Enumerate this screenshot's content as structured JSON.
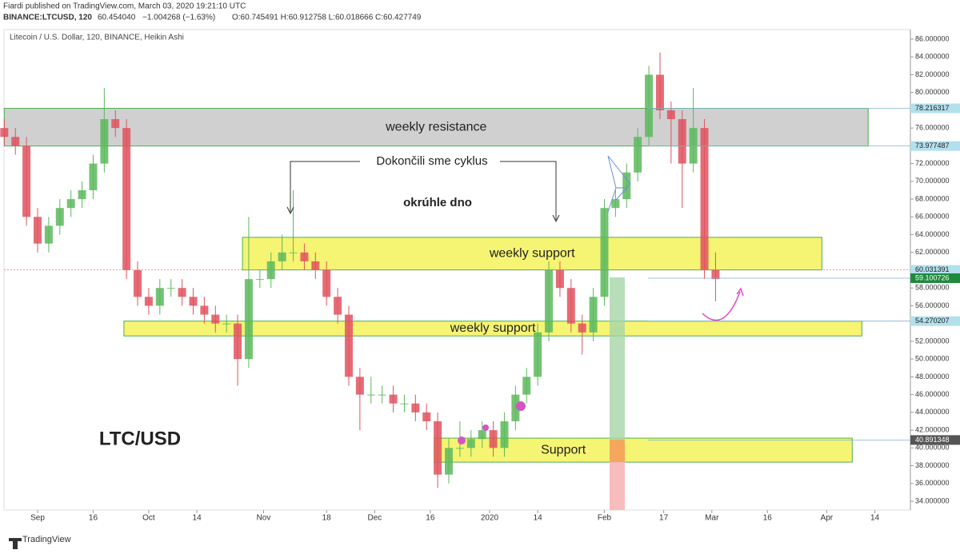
{
  "header": {
    "line1": "Fiardi published on TradingView.com, March 03, 2020 19:21:10 UTC",
    "symbol": "BINANCE:LTCUSD, 120",
    "last": "60.454040",
    "change": "−1.004268 (−1.63%)",
    "ohlc": "O:60.745491  H:60.912758  L:60.018666  C:60.427749"
  },
  "footer": {
    "brand": "TradingView"
  },
  "chart_data": {
    "type": "candlestick",
    "title": "Litecoin / U.S. Dollar, 120, BINANCE, Heikin Ashi",
    "x": [
      -9,
      -6,
      -3,
      0,
      3,
      6,
      9,
      12,
      15,
      18,
      21,
      24,
      27,
      30,
      33,
      36,
      39,
      42,
      45,
      48,
      51,
      54,
      57,
      60,
      63,
      66,
      69,
      72,
      75,
      78,
      81,
      84,
      87,
      90,
      93,
      96,
      99,
      102,
      105,
      108,
      111,
      114,
      117,
      120,
      123,
      126,
      129,
      132,
      135,
      138,
      141,
      144,
      147,
      150,
      153,
      156,
      159,
      162,
      165,
      168,
      171,
      174,
      177,
      180,
      183
    ],
    "open": [
      76,
      75,
      74,
      66,
      63,
      65,
      67,
      68,
      69,
      72,
      77,
      76,
      60,
      57,
      56,
      58,
      58,
      57,
      56,
      55,
      54,
      54,
      50,
      59,
      59,
      61,
      62,
      62,
      61,
      60,
      57,
      55,
      48,
      46,
      46,
      46,
      45,
      45,
      44,
      43,
      37,
      40,
      40,
      41,
      42,
      40,
      43,
      46,
      48,
      53,
      60,
      58,
      54,
      53,
      57,
      67,
      68,
      71,
      75,
      82,
      78,
      77,
      72,
      76,
      60
    ],
    "high": [
      77,
      76,
      75,
      67,
      66,
      68,
      69,
      70,
      73,
      80.5,
      78,
      77,
      61,
      58,
      59,
      59,
      59,
      58,
      57,
      56,
      55,
      55,
      66,
      60,
      62,
      64,
      69,
      63,
      62,
      61,
      58,
      56,
      49,
      48,
      47,
      47,
      46,
      46,
      45,
      44,
      41,
      43,
      42,
      43,
      43,
      44,
      47,
      49,
      54,
      61,
      61,
      59,
      55,
      58,
      68,
      69,
      72,
      76,
      83,
      84.5,
      79,
      78,
      80.5,
      77,
      62
    ],
    "low": [
      74,
      73,
      65,
      62,
      62,
      64,
      66,
      67,
      68,
      71,
      75,
      59,
      56,
      55,
      55,
      57,
      56,
      55,
      54,
      53,
      53,
      47,
      49,
      58,
      58,
      60,
      61,
      60,
      59,
      56,
      54,
      47,
      42,
      45,
      45,
      44,
      44,
      43,
      42,
      35.5,
      36,
      39,
      39,
      40,
      39,
      39,
      42,
      45,
      47,
      52,
      57,
      53,
      50.5,
      52,
      56,
      66,
      67,
      70,
      74,
      77,
      72,
      67,
      71,
      59,
      56.5
    ],
    "close": [
      75,
      74,
      66,
      63,
      65,
      67,
      68,
      69,
      72,
      77,
      76,
      60,
      57,
      56,
      58,
      58,
      57,
      56,
      55,
      54,
      54,
      50,
      59,
      59,
      61,
      62,
      62,
      61,
      60,
      57,
      55,
      48,
      46,
      46,
      46,
      45,
      45,
      44,
      43,
      37,
      40,
      40,
      41,
      42,
      40,
      43,
      46,
      48,
      53,
      60,
      58,
      54,
      53,
      57,
      67,
      68,
      71,
      75,
      82,
      78,
      77,
      72,
      76,
      60,
      59
    ],
    "up_color": "#5cb85c",
    "down_color": "#e0525e",
    "xlim": [
      -9.07,
      235.6
    ],
    "xticks": [
      {
        "value": 0,
        "label": "Sep"
      },
      {
        "value": 15,
        "label": "16"
      },
      {
        "value": 30,
        "label": "Oct"
      },
      {
        "value": 43,
        "label": "14"
      },
      {
        "value": 61,
        "label": "Nov"
      },
      {
        "value": 78,
        "label": "18"
      },
      {
        "value": 91,
        "label": "Dec"
      },
      {
        "value": 106,
        "label": "16"
      },
      {
        "value": 122,
        "label": "2020"
      },
      {
        "value": 135,
        "label": "14"
      },
      {
        "value": 153,
        "label": "Feb"
      },
      {
        "value": 169,
        "label": "17"
      },
      {
        "value": 182,
        "label": "Mar"
      },
      {
        "value": 197,
        "label": "16"
      },
      {
        "value": 213,
        "label": "Apr"
      },
      {
        "value": 226,
        "label": "14"
      }
    ],
    "ylim": [
      33.01,
      87.08
    ],
    "yticks": [
      {
        "value": 34,
        "label": "34.000000"
      },
      {
        "value": 36,
        "label": "36.000000"
      },
      {
        "value": 38,
        "label": "38.000000"
      },
      {
        "value": 40,
        "label": "40.000000"
      },
      {
        "value": 42,
        "label": "42.000000"
      },
      {
        "value": 44,
        "label": "44.000000"
      },
      {
        "value": 46,
        "label": "46.000000"
      },
      {
        "value": 48,
        "label": "48.000000"
      },
      {
        "value": 50,
        "label": "50.000000"
      },
      {
        "value": 52,
        "label": "52.000000"
      },
      {
        "value": 54,
        "label": "54.000000"
      },
      {
        "value": 56,
        "label": "56.000000"
      },
      {
        "value": 58,
        "label": "58.000000"
      },
      {
        "value": 60,
        "label": "60.000000"
      },
      {
        "value": 62,
        "label": "62.000000"
      },
      {
        "value": 64,
        "label": "64.000000"
      },
      {
        "value": 66,
        "label": "66.000000"
      },
      {
        "value": 68,
        "label": "68.000000"
      },
      {
        "value": 70,
        "label": "70.000000"
      },
      {
        "value": 72,
        "label": "72.000000"
      },
      {
        "value": 74,
        "label": "74.000000"
      },
      {
        "value": 76,
        "label": "76.000000"
      },
      {
        "value": 78,
        "label": "78.000000"
      },
      {
        "value": 80,
        "label": "80.000000"
      },
      {
        "value": 82,
        "label": "82.000000"
      },
      {
        "value": 84,
        "label": "84.000000"
      },
      {
        "value": 86,
        "label": "86.000000"
      }
    ],
    "price_labels": [
      {
        "value": 78.216317,
        "label": "78.216317",
        "color": "#b2e0ec"
      },
      {
        "value": 73.977487,
        "label": "73.977487",
        "color": "#b2e0ec"
      },
      {
        "value": 60.031391,
        "label": "60.031391",
        "color": "#b2e0ec"
      },
      {
        "value": 59.100726,
        "label": "59.100726",
        "color": "#1e8a3c"
      },
      {
        "value": 54.270207,
        "label": "54.270207",
        "color": "#b2e0ec"
      },
      {
        "value": 40.891348,
        "label": "40.891348",
        "color": "#555555"
      }
    ],
    "zones": [
      {
        "text": "weekly resistance",
        "x": [
          -9,
          224.2
        ],
        "y": [
          73.977487,
          78.216317
        ],
        "color": "#c8c8c8"
      },
      {
        "text": "weekly support",
        "x": [
          55.3,
          211.7
        ],
        "y": [
          60.031391,
          63.7
        ],
        "color": "#f4f25a"
      },
      {
        "text": "weekly support",
        "x": [
          23.3,
          222.5
        ],
        "y": [
          52.6,
          54.270207
        ],
        "color": "#f4f25a"
      },
      {
        "text": "Support",
        "x": [
          107.1,
          219.9
        ],
        "y": [
          38.4,
          41.1
        ],
        "color": "#f4f25a"
      }
    ],
    "annotations": [
      "Dokončili sme cyklus",
      "okrúhle dno",
      "LTC/USD"
    ]
  }
}
